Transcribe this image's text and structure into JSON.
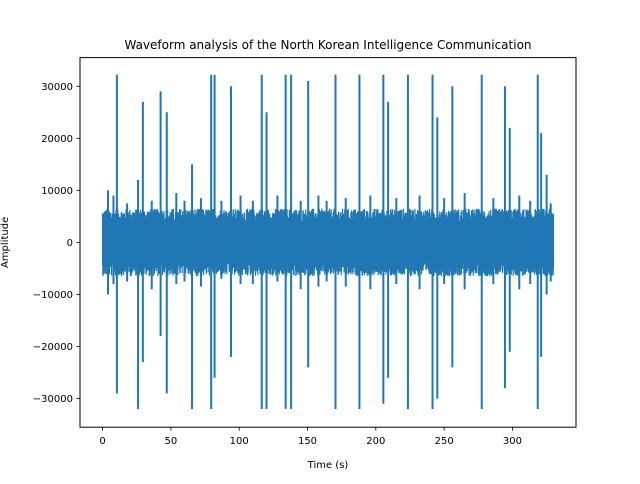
{
  "chart_data": {
    "type": "line",
    "title": "Waveform analysis of the North Korean Intelligence Communication",
    "xlabel": "Time (s)",
    "ylabel": "Amplitude",
    "xlim": [
      -16.5,
      346.5
    ],
    "ylim": [
      -35500,
      35500
    ],
    "xticks": [
      0,
      50,
      100,
      150,
      200,
      250,
      300
    ],
    "yticks": [
      -30000,
      -20000,
      -10000,
      0,
      10000,
      20000,
      30000
    ],
    "grid": false,
    "legend": "none",
    "line_color": "#1f77b4",
    "duration": 330,
    "noise_envelope": [
      -6500,
      6500
    ],
    "series": [
      {
        "clipped_peaks": [
          [
            10.5,
            32200,
            -29000
          ],
          [
            26,
            12000,
            -32000
          ],
          [
            29.5,
            27000,
            -23000
          ],
          [
            42.5,
            29000,
            -18000
          ],
          [
            47,
            25000,
            -29000
          ],
          [
            65.5,
            15000,
            -32000
          ],
          [
            79.5,
            32200,
            -32000
          ],
          [
            82,
            32200,
            -26000
          ],
          [
            94,
            30000,
            -22000
          ],
          [
            116.5,
            32200,
            -32000
          ],
          [
            120,
            25000,
            -32000
          ],
          [
            134,
            32200,
            -32000
          ],
          [
            138,
            32200,
            -32000
          ],
          [
            150.5,
            31000,
            -24000
          ],
          [
            170.5,
            32200,
            -32000
          ],
          [
            188,
            32200,
            -32000
          ],
          [
            205.5,
            32200,
            -31000
          ],
          [
            209,
            27000,
            -26000
          ],
          [
            223.5,
            32200,
            -32000
          ],
          [
            241.5,
            32200,
            -32000
          ],
          [
            245,
            24000,
            -30000
          ],
          [
            256,
            30000,
            -24000
          ],
          [
            277.5,
            32200,
            -32000
          ],
          [
            294.5,
            30000,
            -28000
          ],
          [
            298,
            22000,
            -21000
          ],
          [
            318.5,
            32200,
            -32000
          ],
          [
            321,
            21000,
            -22000
          ]
        ],
        "minor_peaks": [
          [
            4,
            10000,
            -10000
          ],
          [
            8,
            9000,
            -8000
          ],
          [
            18,
            7500,
            -7500
          ],
          [
            36,
            8000,
            -9000
          ],
          [
            54,
            9500,
            -8000
          ],
          [
            60,
            8000,
            -7500
          ],
          [
            72,
            8500,
            -8500
          ],
          [
            87,
            8000,
            -7000
          ],
          [
            101,
            9000,
            -8000
          ],
          [
            110,
            8000,
            -8000
          ],
          [
            128,
            9000,
            -7500
          ],
          [
            145,
            8000,
            -9000
          ],
          [
            158,
            9000,
            -8500
          ],
          [
            164,
            8000,
            -7500
          ],
          [
            178,
            8500,
            -8500
          ],
          [
            196,
            9000,
            -9000
          ],
          [
            215,
            8500,
            -8000
          ],
          [
            232,
            9000,
            -9000
          ],
          [
            250,
            8500,
            -8000
          ],
          [
            265,
            9500,
            -9000
          ],
          [
            286,
            8500,
            -8000
          ],
          [
            305,
            9000,
            -9000
          ],
          [
            313,
            8000,
            -8000
          ],
          [
            325,
            13000,
            -10000
          ],
          [
            328,
            7500,
            -7500
          ]
        ]
      }
    ]
  }
}
